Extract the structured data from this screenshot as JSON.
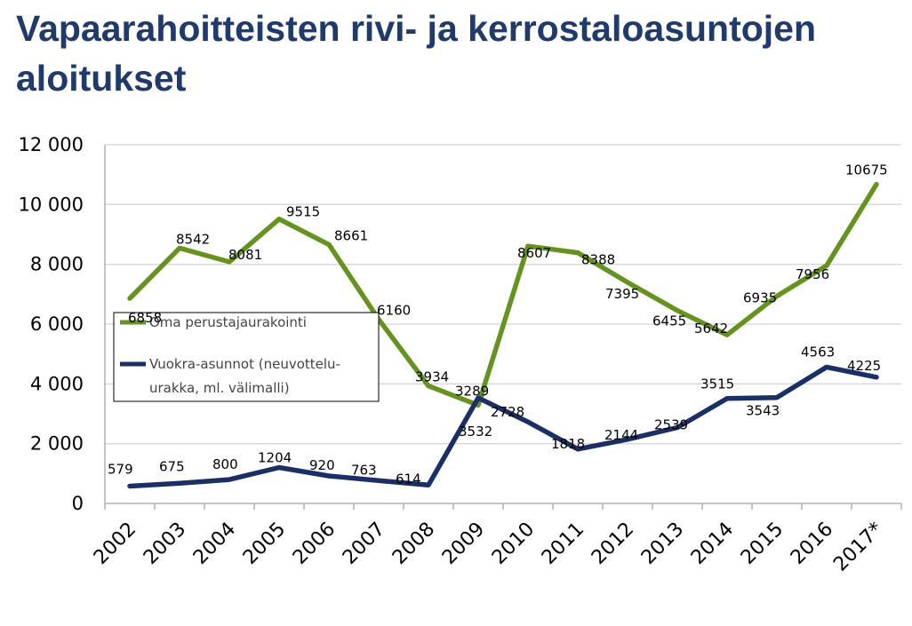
{
  "title": "Vapaarahoitteisten rivi- ja kerrostaloasuntojen aloitukset",
  "chart_data": {
    "type": "line",
    "title": "Vapaarahoitteisten rivi- ja kerrostaloasuntojen aloitukset",
    "categories": [
      "2002",
      "2003",
      "2004",
      "2005",
      "2006",
      "2007",
      "2008",
      "2009",
      "2010",
      "2011",
      "2012",
      "2013",
      "2014",
      "2015",
      "2016",
      "2017*"
    ],
    "ylim": [
      0,
      12000
    ],
    "yticks": [
      0,
      2000,
      4000,
      6000,
      8000,
      10000,
      12000
    ],
    "ytick_labels": [
      "0",
      "2 000",
      "4 000",
      "6 000",
      "8 000",
      "10 000",
      "12 000"
    ],
    "grid": true,
    "legend_position": "left-middle",
    "series": [
      {
        "name": "Oma perustajaurakointi",
        "legend_label": "Oma perustajaurakointi",
        "color": "#66921f",
        "values": [
          6858,
          8542,
          8081,
          9515,
          8661,
          6160,
          3934,
          3289,
          8607,
          8388,
          7395,
          6455,
          5642,
          6935,
          7956,
          10675
        ],
        "labels": [
          "6858",
          "8542",
          "8081",
          "9515",
          "8661",
          "6160",
          "3934",
          "3289",
          "8607",
          "8388",
          "7395",
          "6455",
          "5642",
          "6935",
          "7956",
          "10675"
        ]
      },
      {
        "name": "Vuokra-asunnot (neuvotteluurakka, ml. välimalli)",
        "legend_label": "Vuokra-asunnot (neuvottelu-|urakka, ml. välimalli)",
        "color": "#1b2f66",
        "values": [
          579,
          675,
          800,
          1204,
          920,
          763,
          614,
          3532,
          2728,
          1818,
          2144,
          2539,
          3515,
          3543,
          4563,
          4225
        ],
        "labels": [
          "579",
          "675",
          "800",
          "1204",
          "920",
          "763",
          "614",
          "3532",
          "2728",
          "1818",
          "2144",
          "2539",
          "3515",
          "3543",
          "4563",
          "4225"
        ]
      }
    ]
  }
}
